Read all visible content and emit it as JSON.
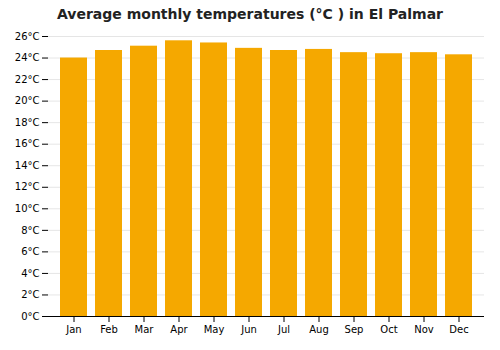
{
  "chart_data": {
    "type": "bar",
    "title": "Average monthly temperatures (°C ) in El Palmar",
    "categories": [
      "Jan",
      "Feb",
      "Mar",
      "Apr",
      "May",
      "Jun",
      "Jul",
      "Aug",
      "Sep",
      "Oct",
      "Nov",
      "Dec"
    ],
    "values": [
      24.0,
      24.7,
      25.1,
      25.6,
      25.4,
      24.9,
      24.7,
      24.8,
      24.5,
      24.4,
      24.5,
      24.3
    ],
    "color": "#F5A800",
    "ylim": [
      0,
      26
    ],
    "yticks": [
      {
        "value": 0,
        "label": "0°C"
      },
      {
        "value": 2,
        "label": "2°C"
      },
      {
        "value": 4,
        "label": "4°C"
      },
      {
        "value": 6,
        "label": "6°C"
      },
      {
        "value": 8,
        "label": "8°C"
      },
      {
        "value": 10,
        "label": "10°C"
      },
      {
        "value": 12,
        "label": "12°C"
      },
      {
        "value": 14,
        "label": "14°C"
      },
      {
        "value": 16,
        "label": "16°C"
      },
      {
        "value": 18,
        "label": "18°C"
      },
      {
        "value": 20,
        "label": "20°C"
      },
      {
        "value": 22,
        "label": "22°C"
      },
      {
        "value": 24,
        "label": "24°C"
      },
      {
        "value": 26,
        "label": "26°C"
      }
    ],
    "grid": true
  }
}
